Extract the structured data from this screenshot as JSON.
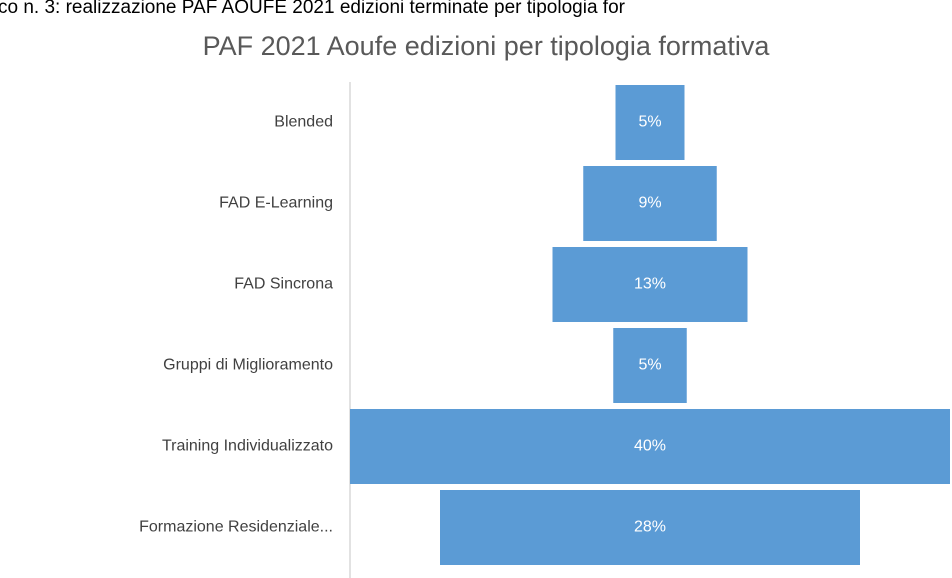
{
  "caption": "co n. 3: realizzazione PAF AOUFE 2021 edizioni terminate per tipologia for",
  "chart_data": {
    "type": "funnel",
    "title": "PAF 2021 Aoufe edizioni per tipologia formativa",
    "categories": [
      "Blended",
      "FAD E-Learning",
      "FAD Sincrona",
      "Gruppi di Miglioramento",
      "Training Individualizzato",
      "Formazione Residenziale..."
    ],
    "values": [
      4.6,
      8.9,
      13,
      4.9,
      40,
      28
    ],
    "value_labels": [
      "5%",
      "9%",
      "13%",
      "5%",
      "40%",
      "28%"
    ],
    "color": "#5b9bd5"
  }
}
